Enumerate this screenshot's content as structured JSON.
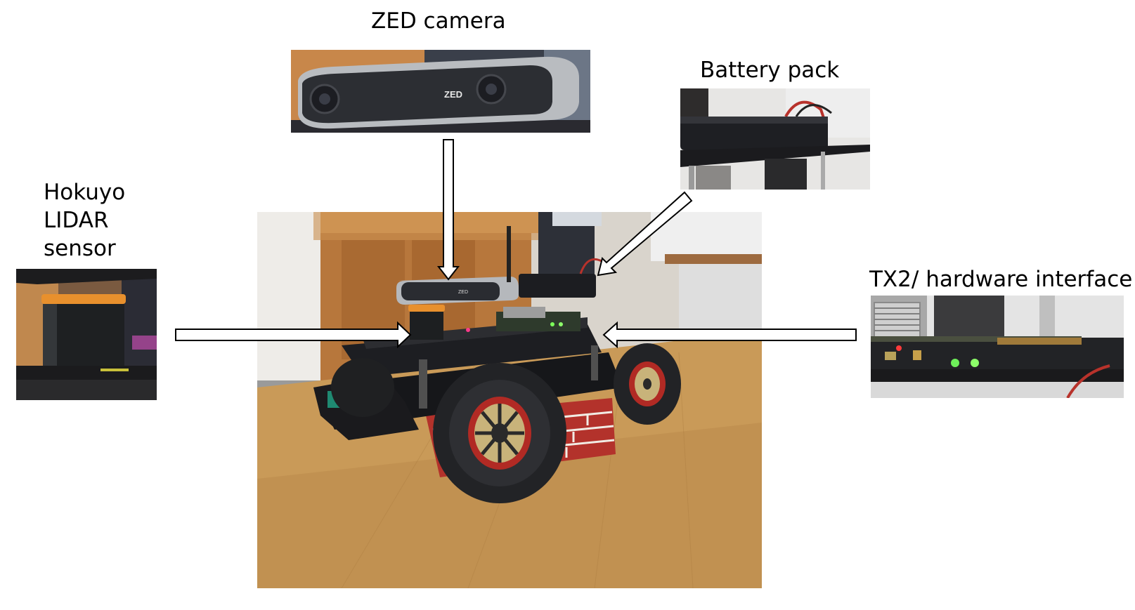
{
  "labels": {
    "zed_camera": "ZED camera",
    "battery_pack": "Battery pack",
    "lidar_line1": "Hokuyo",
    "lidar_line2": "LIDAR",
    "lidar_line3": "sensor",
    "tx2": "TX2/ hardware interface"
  },
  "photos": {
    "zed_brand_text": "ZED",
    "main_zed_brand_text": "ZED"
  }
}
